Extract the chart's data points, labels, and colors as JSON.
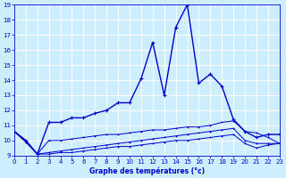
{
  "xlabel": "Graphe des températures (°c)",
  "x": [
    0,
    1,
    2,
    3,
    4,
    5,
    6,
    7,
    8,
    9,
    10,
    11,
    12,
    13,
    14,
    15,
    16,
    17,
    18,
    19,
    20,
    21,
    22,
    23
  ],
  "temp_main": [
    10.6,
    10.0,
    9.1,
    11.2,
    11.2,
    11.5,
    11.5,
    11.8,
    12.0,
    12.5,
    12.5,
    14.1,
    16.5,
    13.0,
    17.5,
    19.0,
    13.8,
    14.4,
    13.6,
    11.4,
    10.6,
    10.2,
    10.4,
    10.4
  ],
  "temp_flat1": [
    10.6,
    10.0,
    9.1,
    10.0,
    10.0,
    10.1,
    10.2,
    10.3,
    10.4,
    10.4,
    10.5,
    10.6,
    10.7,
    10.7,
    10.8,
    10.9,
    10.9,
    11.0,
    11.2,
    11.3,
    10.6,
    10.5,
    10.2,
    9.8
  ],
  "temp_flat2": [
    10.6,
    9.9,
    9.1,
    9.2,
    9.3,
    9.4,
    9.5,
    9.6,
    9.7,
    9.8,
    9.9,
    10.0,
    10.1,
    10.2,
    10.3,
    10.4,
    10.5,
    10.6,
    10.7,
    10.8,
    10.0,
    9.8,
    9.8,
    9.8
  ],
  "temp_flat3": [
    10.6,
    9.9,
    9.1,
    9.1,
    9.2,
    9.2,
    9.3,
    9.4,
    9.5,
    9.6,
    9.6,
    9.7,
    9.8,
    9.9,
    10.0,
    10.0,
    10.1,
    10.2,
    10.3,
    10.4,
    9.8,
    9.5,
    9.7,
    9.8
  ],
  "ylim": [
    9,
    19
  ],
  "xlim": [
    0,
    23
  ],
  "bg_color": "#cceeff",
  "line_color": "#0000cc",
  "grid_color": "#ffffff",
  "marker": "+"
}
